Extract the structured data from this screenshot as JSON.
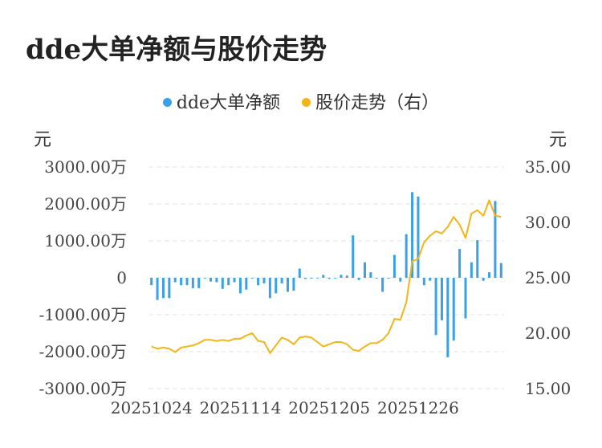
{
  "title": "dde大单净额与股价走势",
  "legend": [
    {
      "label": "dde大单净额",
      "color": "#3aa0e8"
    },
    {
      "label": "股价走势（右）",
      "color": "#f5b415"
    }
  ],
  "left_unit": "元",
  "right_unit": "元",
  "chart_data": {
    "type": "bar+line",
    "title": "dde大单净额与股价走势",
    "left_axis": {
      "ticks": [
        "3000.00万",
        "2000.00万",
        "1000.00万",
        "0",
        "-1000.00万",
        "-2000.00万",
        "-3000.00万"
      ],
      "range": [
        -3000,
        3000
      ],
      "unit": "万"
    },
    "right_axis": {
      "ticks": [
        "35.00",
        "30.00",
        "25.00",
        "20.00",
        "15.00"
      ],
      "range": [
        15,
        35
      ]
    },
    "x_labels": [
      "20251024",
      "20251114",
      "20251205",
      "20251226"
    ],
    "x_label_index": [
      0,
      15,
      30,
      45
    ],
    "grid": "horizontal-dashed",
    "series": [
      {
        "name": "dde大单净额",
        "type": "bar",
        "axis": "left",
        "color": "#3aa0e8",
        "values": [
          -200,
          -600,
          -550,
          -550,
          -120,
          -200,
          -200,
          -280,
          -280,
          -20,
          -100,
          -120,
          -300,
          -200,
          -120,
          -420,
          -320,
          -20,
          -200,
          -150,
          -550,
          -420,
          -150,
          -380,
          -350,
          250,
          -30,
          -20,
          -10,
          80,
          -30,
          -10,
          80,
          60,
          1150,
          -60,
          420,
          150,
          -10,
          -380,
          -20,
          620,
          -100,
          1180,
          2320,
          2200,
          -200,
          -80,
          -1550,
          -1150,
          -2150,
          -1700,
          780,
          -1100,
          420,
          1020,
          -80,
          150,
          2080,
          400
        ]
      },
      {
        "name": "股价走势（右）",
        "type": "line",
        "axis": "right",
        "color": "#f5b415",
        "values": [
          18.8,
          18.6,
          18.7,
          18.6,
          18.3,
          18.7,
          18.8,
          18.9,
          19.1,
          19.4,
          19.4,
          19.3,
          19.4,
          19.3,
          19.5,
          19.5,
          19.8,
          20.0,
          19.3,
          19.2,
          18.2,
          18.9,
          19.6,
          19.4,
          19.0,
          19.6,
          19.7,
          19.6,
          19.2,
          18.8,
          19.0,
          19.2,
          19.2,
          19.0,
          18.5,
          18.4,
          18.8,
          19.1,
          19.1,
          19.4,
          20.0,
          21.3,
          21.2,
          22.8,
          26.5,
          26.7,
          28.2,
          28.8,
          29.2,
          29.0,
          29.6,
          30.5,
          29.8,
          28.6,
          30.8,
          31.1,
          30.6,
          32.0,
          30.6,
          30.5
        ]
      }
    ]
  }
}
